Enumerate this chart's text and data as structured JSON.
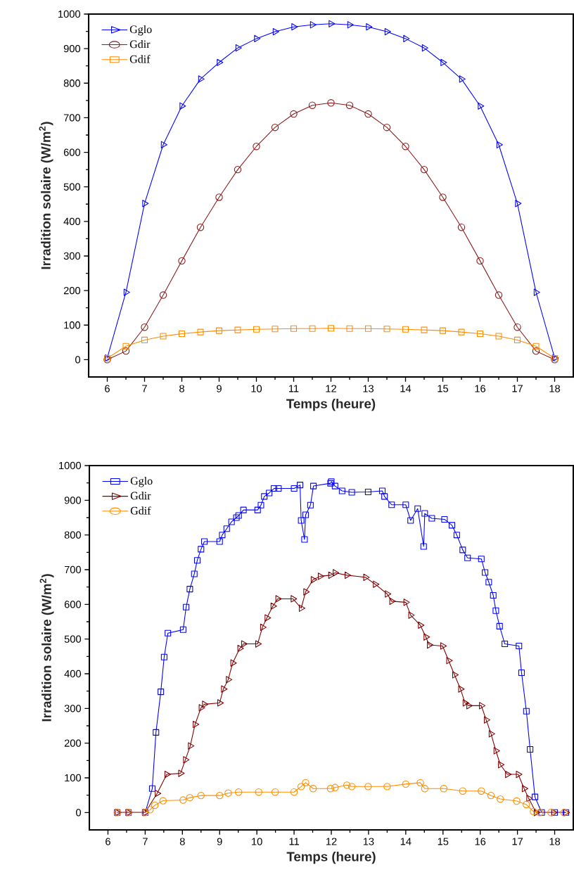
{
  "chart_data": [
    {
      "type": "line",
      "xlabel": "Temps (heure)",
      "ylabel": "Irradition solaire (W/m$^{2}$)",
      "xlim": [
        5.5,
        18.5
      ],
      "ylim": [
        -50,
        1000
      ],
      "xticks": [
        6,
        7,
        8,
        9,
        10,
        11,
        12,
        13,
        14,
        15,
        16,
        17,
        18
      ],
      "yticks": [
        0,
        100,
        200,
        300,
        400,
        500,
        600,
        700,
        800,
        900,
        1000
      ],
      "legend": "top left",
      "grid": false,
      "line_style": "solid",
      "series": [
        {
          "name": "Gglo",
          "color": "#0000ff",
          "marker": "triangle",
          "x": [
            6,
            6.5,
            7,
            7.5,
            8,
            8.5,
            9,
            9.5,
            10,
            10.5,
            11,
            11.5,
            12,
            12.5,
            13,
            13.5,
            14,
            14.5,
            15,
            15.5,
            16,
            16.5,
            17,
            17.5,
            18
          ],
          "values": [
            5,
            195,
            452,
            622,
            734,
            812,
            860,
            902,
            929,
            949,
            963,
            969,
            972,
            969,
            963,
            949,
            929,
            902,
            860,
            812,
            734,
            622,
            452,
            195,
            5
          ]
        },
        {
          "name": "Gdir",
          "color": "#8b1a1a",
          "marker": "circle",
          "x": [
            6,
            6.5,
            7,
            7.5,
            8,
            8.5,
            9,
            9.5,
            10,
            10.5,
            11,
            11.5,
            12,
            12.5,
            13,
            13.5,
            14,
            14.5,
            15,
            15.5,
            16,
            16.5,
            17,
            17.5,
            18
          ],
          "values": [
            0,
            25,
            94,
            187,
            286,
            383,
            470,
            550,
            617,
            672,
            711,
            736,
            743,
            736,
            711,
            672,
            617,
            550,
            470,
            383,
            286,
            187,
            94,
            25,
            0
          ]
        },
        {
          "name": "Gdif",
          "color": "#ff8c00",
          "marker": "square",
          "x": [
            6,
            6.5,
            7,
            7.5,
            8,
            8.5,
            9,
            9.5,
            10,
            10.5,
            11,
            11.5,
            12,
            12.5,
            13,
            13.5,
            14,
            14.5,
            15,
            15.5,
            16,
            16.5,
            17,
            17.5,
            18
          ],
          "values": [
            4,
            39,
            57,
            68,
            75,
            80,
            84,
            86,
            88,
            89,
            90,
            90,
            91,
            90,
            90,
            89,
            88,
            86,
            84,
            80,
            75,
            68,
            57,
            39,
            4
          ]
        }
      ]
    },
    {
      "type": "line",
      "xlabel": "Temps (heure)",
      "ylabel": "Irradition solaire (W/m$^{2}$)",
      "xlim": [
        5.5,
        18.5
      ],
      "ylim": [
        -50,
        1000
      ],
      "xticks": [
        6,
        7,
        8,
        9,
        10,
        11,
        12,
        13,
        14,
        15,
        16,
        17,
        18
      ],
      "yticks": [
        0,
        100,
        200,
        300,
        400,
        500,
        600,
        700,
        800,
        900,
        1000
      ],
      "legend": "top left",
      "grid": false,
      "line_style": "solid",
      "series": [
        {
          "name": "Gglo",
          "color": "#0000ff",
          "marker": "square",
          "x": [
            6.25,
            6.55,
            7.0,
            7.19,
            7.29,
            7.42,
            7.51,
            7.61,
            8.02,
            8.1,
            8.2,
            8.32,
            8.4,
            8.5,
            8.59,
            9.0,
            9.07,
            9.19,
            9.32,
            9.45,
            9.51,
            9.64,
            10.02,
            10.11,
            10.2,
            10.33,
            10.46,
            10.58,
            11.0,
            11.16,
            11.19,
            11.28,
            11.31,
            11.44,
            11.52,
            11.98,
            12.0,
            12.1,
            12.29,
            12.55,
            12.99,
            13.37,
            13.43,
            13.62,
            14.0,
            14.13,
            14.32,
            14.48,
            14.51,
            14.7,
            15.04,
            15.24,
            15.37,
            15.53,
            15.66,
            16.03,
            16.13,
            16.23,
            16.35,
            16.42,
            16.52,
            16.66,
            17.04,
            17.11,
            17.24,
            17.34,
            17.47,
            17.65,
            18.0,
            18.3
          ],
          "values": [
            0,
            0,
            0,
            69,
            231,
            348,
            448,
            517,
            527,
            592,
            644,
            688,
            727,
            759,
            781,
            781,
            800,
            818,
            838,
            850,
            856,
            872,
            872,
            886,
            911,
            921,
            934,
            934,
            934,
            944,
            842,
            787,
            858,
            886,
            941,
            949,
            954,
            941,
            927,
            923,
            924,
            927,
            911,
            887,
            887,
            842,
            876,
            767,
            862,
            848,
            845,
            828,
            800,
            757,
            734,
            731,
            692,
            664,
            626,
            582,
            537,
            486,
            480,
            403,
            292,
            182,
            45,
            0,
            0,
            0
          ]
        },
        {
          "name": "Gdir",
          "color": "#7f0000",
          "marker": "triangle",
          "x": [
            6.25,
            6.55,
            7.0,
            7.32,
            7.58,
            7.95,
            8.08,
            8.21,
            8.34,
            8.5,
            8.59,
            9.0,
            9.1,
            9.23,
            9.35,
            9.54,
            9.64,
            10.02,
            10.15,
            10.27,
            10.43,
            10.56,
            10.97,
            11.19,
            11.31,
            11.51,
            11.7,
            11.98,
            12.1,
            12.42,
            12.92,
            13.18,
            13.5,
            13.62,
            14.0,
            14.13,
            14.39,
            14.54,
            14.63,
            14.99,
            15.15,
            15.31,
            15.47,
            15.59,
            15.69,
            16.03,
            16.16,
            16.29,
            16.42,
            16.54,
            16.73,
            17.02,
            17.18,
            17.3,
            17.5,
            17.97,
            18.3
          ],
          "values": [
            0,
            0,
            0,
            55,
            110,
            113,
            152,
            192,
            254,
            302,
            312,
            316,
            356,
            383,
            431,
            473,
            486,
            486,
            534,
            561,
            595,
            616,
            616,
            589,
            636,
            671,
            681,
            684,
            691,
            684,
            678,
            658,
            630,
            609,
            606,
            569,
            540,
            506,
            483,
            480,
            438,
            397,
            356,
            316,
            308,
            308,
            267,
            227,
            178,
            138,
            110,
            110,
            69,
            41,
            0,
            0,
            0
          ]
        },
        {
          "name": "Gdif",
          "color": "#ff8c00",
          "marker": "circle",
          "x": [
            6.25,
            6.55,
            7.0,
            7.13,
            7.26,
            7.48,
            8.02,
            8.2,
            8.5,
            9.0,
            9.23,
            9.51,
            10.05,
            10.49,
            11.0,
            11.19,
            11.31,
            11.51,
            11.98,
            12.1,
            12.42,
            12.55,
            12.99,
            13.5,
            14.0,
            14.39,
            14.51,
            15.02,
            15.53,
            16.03,
            16.29,
            16.54,
            16.98,
            17.24,
            17.43,
            17.6,
            17.9,
            18.25
          ],
          "values": [
            0,
            0,
            0,
            8,
            21,
            34,
            36,
            43,
            49,
            49,
            56,
            59,
            59,
            59,
            59,
            75,
            86,
            69,
            69,
            72,
            79,
            75,
            75,
            75,
            82,
            86,
            69,
            69,
            62,
            62,
            49,
            39,
            33,
            23,
            3,
            0,
            0,
            0
          ]
        }
      ]
    }
  ]
}
